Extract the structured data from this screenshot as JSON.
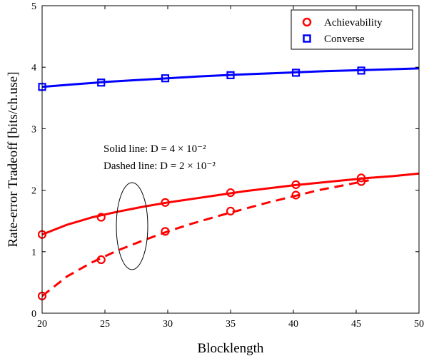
{
  "chart_data": {
    "type": "line",
    "xlabel": "Blocklength",
    "ylabel": "Rate-error Tradeoff [bits/ch.use]",
    "xlim": [
      20,
      50
    ],
    "ylim": [
      0,
      5
    ],
    "xticks": [
      "20",
      "25",
      "30",
      "35",
      "40",
      "45",
      "50"
    ],
    "yticks": [
      "0",
      "1",
      "2",
      "3",
      "4",
      "5"
    ],
    "grid": false,
    "legend_position": "top-right",
    "legend": [
      {
        "label": "Achievability",
        "marker": "circle",
        "color": "#ff0000"
      },
      {
        "label": "Converse",
        "marker": "square",
        "color": "#0000ff"
      }
    ],
    "series": [
      {
        "legend_ref": "Converse",
        "color": "#0000ff",
        "style": "solid",
        "curve_x": [
          20,
          22.5,
          25,
          27.5,
          30,
          32.5,
          35,
          37.5,
          40,
          42.5,
          45,
          47.5,
          50
        ],
        "curve_y": [
          3.68,
          3.72,
          3.76,
          3.79,
          3.82,
          3.85,
          3.875,
          3.895,
          3.915,
          3.935,
          3.95,
          3.965,
          3.98
        ],
        "marker_x": [
          20,
          24.7,
          29.8,
          35,
          40.2,
          45.4
        ],
        "marker_y": [
          3.68,
          3.75,
          3.82,
          3.87,
          3.91,
          3.945
        ]
      },
      {
        "legend_ref": "Achievability",
        "color": "#ff0000",
        "style": "solid",
        "curve_x": [
          20,
          22,
          24,
          26,
          28,
          30,
          32,
          34,
          36,
          38,
          40,
          42,
          44,
          46,
          48,
          50
        ],
        "curve_y": [
          1.28,
          1.44,
          1.56,
          1.65,
          1.73,
          1.8,
          1.86,
          1.92,
          1.98,
          2.03,
          2.08,
          2.12,
          2.16,
          2.2,
          2.23,
          2.27
        ],
        "marker_x": [
          20,
          24.7,
          29.8,
          35,
          40.2,
          45.4
        ],
        "marker_y": [
          1.28,
          1.56,
          1.8,
          1.96,
          2.09,
          2.2
        ]
      },
      {
        "legend_ref": "Achievability",
        "color": "#ff0000",
        "style": "dashed",
        "curve_x": [
          20,
          22,
          24,
          26,
          28,
          30,
          32,
          34,
          36,
          38,
          40,
          42,
          44,
          46
        ],
        "curve_y": [
          0.28,
          0.6,
          0.83,
          1.02,
          1.18,
          1.33,
          1.46,
          1.58,
          1.69,
          1.8,
          1.9,
          2.0,
          2.08,
          2.16
        ],
        "marker_x": [
          20,
          24.7,
          29.8,
          35,
          40.2,
          45.4
        ],
        "marker_y": [
          0.28,
          0.87,
          1.33,
          1.66,
          1.92,
          2.14
        ]
      }
    ],
    "annotations": [
      "Solid line: D = 4 × 10⁻²",
      "Dashed line: D = 2 × 10⁻²"
    ]
  }
}
